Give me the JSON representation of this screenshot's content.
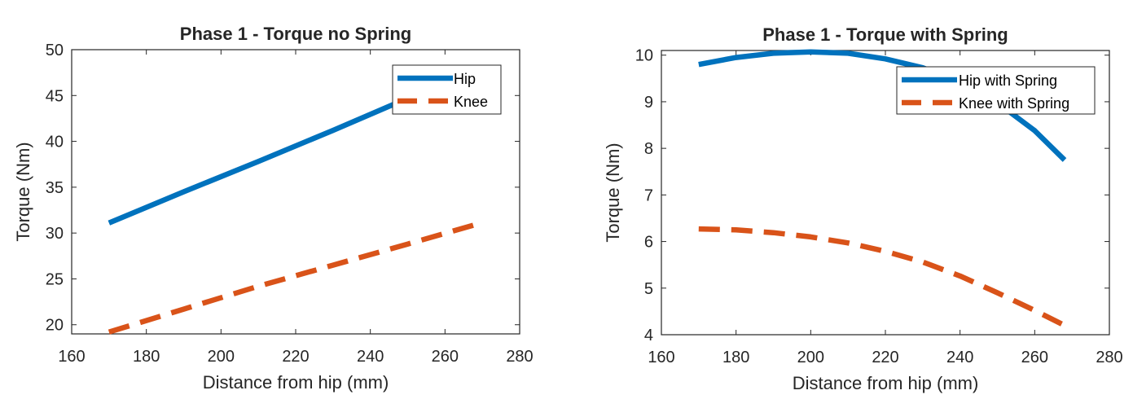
{
  "chart_data": [
    {
      "type": "line",
      "title": "Phase 1 - Torque no Spring",
      "xlabel": "Distance from hip (mm)",
      "ylabel": "Torque (Nm)",
      "xlim": [
        160,
        280
      ],
      "ylim": [
        19,
        50
      ],
      "xticks": [
        160,
        180,
        200,
        220,
        240,
        260,
        280
      ],
      "yticks": [
        20,
        25,
        30,
        35,
        40,
        45,
        50
      ],
      "legend_position": "top-right",
      "series": [
        {
          "name": "Hip",
          "style": "solid",
          "color": "#0072BD",
          "x": [
            170,
            190,
            210,
            230,
            250,
            268
          ],
          "y": [
            31.1,
            34.5,
            37.8,
            41.2,
            44.7,
            47.9
          ]
        },
        {
          "name": "Knee",
          "style": "dashed",
          "color": "#D95319",
          "x": [
            170,
            190,
            210,
            230,
            250,
            268
          ],
          "y": [
            19.2,
            21.7,
            24.2,
            26.5,
            28.8,
            30.9
          ]
        }
      ]
    },
    {
      "type": "line",
      "title": "Phase 1 - Torque with Spring",
      "xlabel": "Distance from hip (mm)",
      "ylabel": "Torque (Nm)",
      "xlim": [
        160,
        280
      ],
      "ylim": [
        4,
        10.1
      ],
      "xticks": [
        160,
        180,
        200,
        220,
        240,
        260,
        280
      ],
      "yticks": [
        4,
        5,
        6,
        7,
        8,
        9,
        10
      ],
      "legend_position": "top-right",
      "series": [
        {
          "name": "Hip with Spring",
          "style": "solid",
          "color": "#0072BD",
          "x": [
            170,
            180,
            190,
            200,
            210,
            220,
            230,
            240,
            250,
            260,
            268
          ],
          "y": [
            9.8,
            9.95,
            10.04,
            10.07,
            10.04,
            9.92,
            9.73,
            9.42,
            8.98,
            8.38,
            7.75
          ]
        },
        {
          "name": "Knee with Spring",
          "style": "dashed",
          "color": "#D95319",
          "x": [
            170,
            180,
            190,
            200,
            210,
            220,
            230,
            240,
            250,
            260,
            268
          ],
          "y": [
            6.27,
            6.25,
            6.19,
            6.1,
            5.97,
            5.79,
            5.56,
            5.26,
            4.9,
            4.52,
            4.2
          ]
        }
      ]
    }
  ]
}
